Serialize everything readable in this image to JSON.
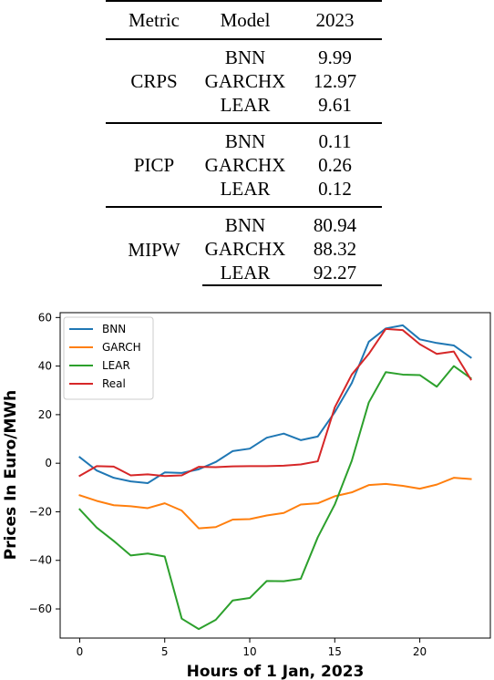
{
  "table": {
    "headers": {
      "metric": "Metric",
      "model": "Model",
      "year": "2023"
    },
    "groups": [
      {
        "metric": "CRPS",
        "rows": [
          {
            "model": "BNN",
            "value": "9.99"
          },
          {
            "model": "GARCHX",
            "value": "12.97"
          },
          {
            "model": "LEAR",
            "value": "9.61"
          }
        ]
      },
      {
        "metric": "PICP",
        "rows": [
          {
            "model": "BNN",
            "value": "0.11"
          },
          {
            "model": "GARCHX",
            "value": "0.26"
          },
          {
            "model": "LEAR",
            "value": "0.12"
          }
        ]
      },
      {
        "metric": "MIPW",
        "rows": [
          {
            "model": "BNN",
            "value": "80.94"
          },
          {
            "model": "GARCHX",
            "value": "88.32"
          },
          {
            "model": "LEAR",
            "value": "92.27"
          }
        ]
      }
    ]
  },
  "chart_data": {
    "type": "line",
    "title": "",
    "xlabel": "Hours of 1 Jan, 2023",
    "ylabel": "Prices In Euro/MWh",
    "xlim": [
      -1.15,
      24.15
    ],
    "ylim": [
      -72,
      62
    ],
    "xticks": [
      0,
      5,
      10,
      15,
      20
    ],
    "yticks": [
      -60,
      -40,
      -20,
      0,
      20,
      40,
      60
    ],
    "grid": false,
    "legend": "top-left",
    "x": [
      0,
      1,
      2,
      3,
      4,
      5,
      6,
      7,
      8,
      9,
      10,
      11,
      12,
      13,
      14,
      15,
      16,
      17,
      18,
      19,
      20,
      21,
      22,
      23
    ],
    "series": [
      {
        "name": "BNN",
        "color": "#1f77b4",
        "values": [
          2.5,
          -3,
          -6,
          -7.5,
          -8.2,
          -3.8,
          -4,
          -2.5,
          0.5,
          5,
          6,
          10.5,
          12.2,
          9.5,
          11,
          21,
          33,
          50,
          55.5,
          56.8,
          51,
          49.5,
          48.5,
          43.5
        ]
      },
      {
        "name": "GARCH",
        "color": "#ff7f0e",
        "values": [
          -13.2,
          -15.5,
          -17.3,
          -17.7,
          -18.5,
          -16.5,
          -19.5,
          -26.8,
          -26.3,
          -23.2,
          -23,
          -21.5,
          -20.5,
          -17,
          -16.5,
          -13.6,
          -12,
          -9,
          -8.5,
          -9.3,
          -10.5,
          -8.8,
          -6,
          -6.5
        ]
      },
      {
        "name": "LEAR",
        "color": "#2ca02c",
        "values": [
          -19,
          -26.5,
          -32,
          -38,
          -37.2,
          -38.4,
          -64,
          -68.3,
          -64.5,
          -56.5,
          -55.5,
          -48.5,
          -48.6,
          -47.6,
          -30.5,
          -17,
          1,
          25,
          37.5,
          36.5,
          36.3,
          31.5,
          40,
          35
        ]
      },
      {
        "name": "Real",
        "color": "#d62728",
        "values": [
          -5.2,
          -1.2,
          -1.4,
          -5,
          -4.6,
          -5.3,
          -5,
          -1.5,
          -1.6,
          -1.3,
          -1.2,
          -1.2,
          -1,
          -0.5,
          0.8,
          23,
          36.5,
          45,
          55.3,
          54.8,
          49,
          45,
          46,
          34.5
        ]
      }
    ]
  }
}
